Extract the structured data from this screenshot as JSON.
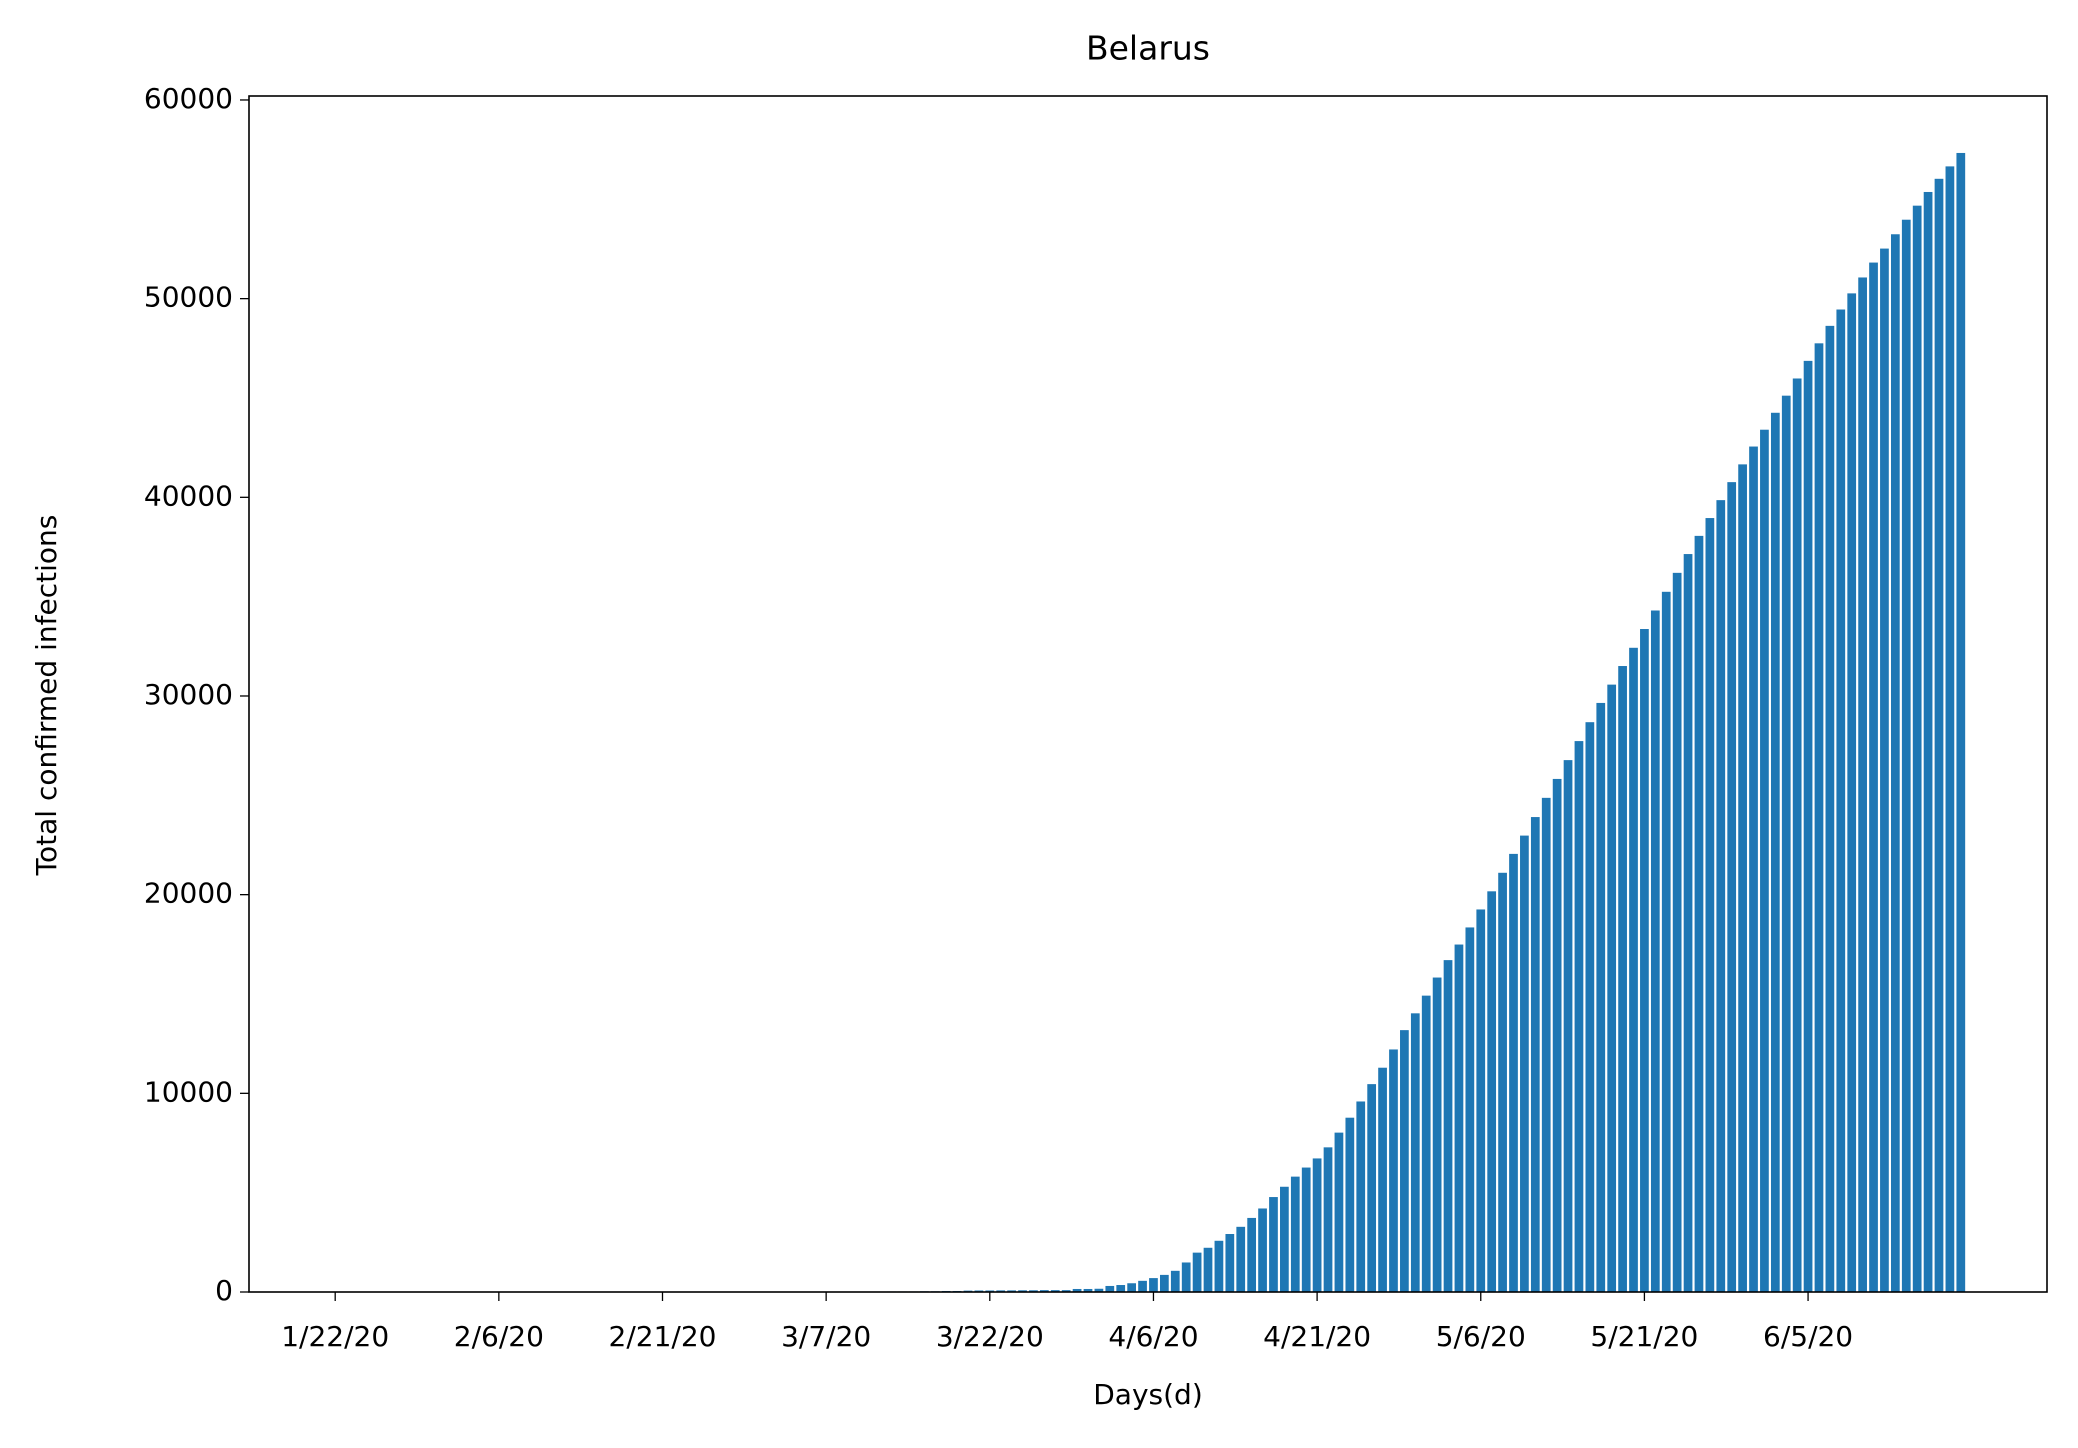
{
  "chart_data": {
    "type": "bar",
    "title": "Belarus",
    "x_label": "Days(d)",
    "y_label": "Total confirmed infections",
    "categories": [
      "1/22/20",
      null,
      null,
      null,
      null,
      null,
      null,
      null,
      null,
      null,
      null,
      null,
      null,
      null,
      null,
      "2/6/20",
      null,
      null,
      null,
      null,
      null,
      null,
      null,
      null,
      null,
      null,
      null,
      null,
      null,
      null,
      "2/21/20",
      null,
      null,
      null,
      null,
      null,
      null,
      null,
      null,
      null,
      null,
      null,
      null,
      null,
      null,
      "3/7/20",
      null,
      null,
      null,
      null,
      null,
      null,
      null,
      null,
      null,
      null,
      null,
      null,
      null,
      null,
      "3/22/20",
      null,
      null,
      null,
      null,
      null,
      null,
      null,
      null,
      null,
      null,
      null,
      null,
      null,
      null,
      "4/6/20",
      null,
      null,
      null,
      null,
      null,
      null,
      null,
      null,
      null,
      null,
      null,
      null,
      null,
      null,
      "4/21/20",
      null,
      null,
      null,
      null,
      null,
      null,
      null,
      null,
      null,
      null,
      null,
      null,
      null,
      null,
      "5/6/20",
      null,
      null,
      null,
      null,
      null,
      null,
      null,
      null,
      null,
      null,
      null,
      null,
      null,
      null,
      "5/21/20",
      null,
      null,
      null,
      null,
      null,
      null,
      null,
      null,
      null,
      null,
      null,
      null,
      null,
      null,
      "6/5/20",
      null,
      null,
      null,
      null,
      null,
      null,
      null,
      null,
      null,
      null,
      null,
      null,
      null,
      null
    ],
    "values": [
      0,
      0,
      0,
      0,
      0,
      0,
      0,
      0,
      0,
      0,
      0,
      0,
      0,
      0,
      0,
      0,
      0,
      0,
      0,
      0,
      0,
      0,
      0,
      0,
      0,
      0,
      0,
      0,
      0,
      0,
      0,
      0,
      0,
      0,
      0,
      0,
      0,
      1,
      1,
      1,
      1,
      6,
      6,
      6,
      6,
      6,
      6,
      6,
      9,
      9,
      12,
      27,
      27,
      27,
      36,
      36,
      51,
      51,
      69,
      76,
      76,
      81,
      81,
      86,
      86,
      94,
      94,
      94,
      152,
      152,
      163,
      304,
      351,
      440,
      562,
      700,
      861,
      1066,
      1486,
      1981,
      2226,
      2578,
      2919,
      3281,
      3728,
      4204,
      4779,
      5297,
      5807,
      6264,
      6723,
      7281,
      8022,
      8773,
      9590,
      10463,
      11289,
      12208,
      13181,
      14027,
      14917,
      15828,
      16705,
      17489,
      18350,
      19255,
      20168,
      21101,
      22052,
      22973,
      23906,
      24873,
      25825,
      26772,
      27730,
      28681,
      29650,
      30572,
      31508,
      32426,
      33371,
      34303,
      35244,
      36198,
      37144,
      38059,
      38956,
      39858,
      40764,
      41658,
      42556,
      43403,
      44255,
      45116,
      45981,
      46868,
      47751,
      48630,
      49453,
      50265,
      51066,
      51816,
      52520,
      53241,
      53973,
      54680,
      55369,
      56032,
      56657,
      57333
    ],
    "color": "#1f77b4",
    "ylim": [
      0,
      60200
    ],
    "yticks": [
      0,
      10000,
      20000,
      30000,
      40000,
      50000,
      60000
    ],
    "grid": false
  }
}
